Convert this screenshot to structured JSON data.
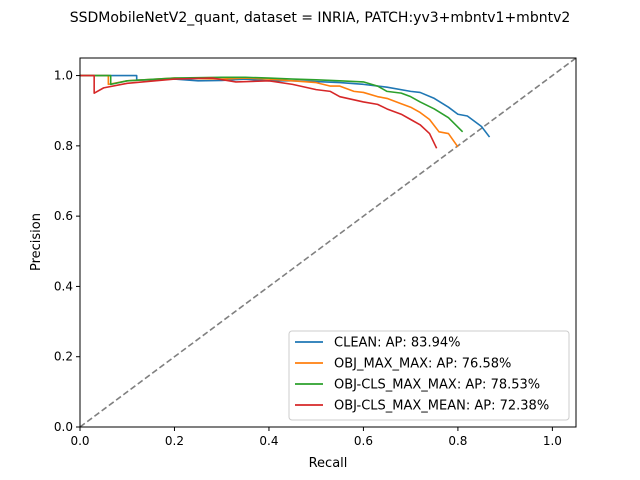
{
  "chart_data": {
    "type": "line",
    "title": "SSDMobileNetV2_quant, dataset = INRIA, PATCH:yv3+mbntv1+mbntv2",
    "xlabel": "Recall",
    "ylabel": "Precision",
    "xlim": [
      0,
      1.05
    ],
    "ylim": [
      0,
      1.05
    ],
    "xticks": [
      0.0,
      0.2,
      0.4,
      0.6,
      0.8,
      1.0
    ],
    "yticks": [
      0.0,
      0.2,
      0.4,
      0.6,
      0.8,
      1.0
    ],
    "xtick_labels": [
      "0.0",
      "0.2",
      "0.4",
      "0.6",
      "0.8",
      "1.0"
    ],
    "ytick_labels": [
      "0.0",
      "0.2",
      "0.4",
      "0.6",
      "0.8",
      "1.0"
    ],
    "grid": false,
    "legend_position": "lower-right",
    "reference_line": {
      "x": [
        0,
        1.05
      ],
      "y": [
        0,
        1.05
      ],
      "color": "#808080",
      "style": "dashed"
    },
    "series": [
      {
        "name": "CLEAN: AP: 83.94%",
        "color": "#1f77b4",
        "x": [
          0.0,
          0.12,
          0.12,
          0.2,
          0.25,
          0.3,
          0.35,
          0.4,
          0.45,
          0.5,
          0.55,
          0.6,
          0.65,
          0.7,
          0.72,
          0.75,
          0.78,
          0.8,
          0.82,
          0.85,
          0.867
        ],
        "y": [
          1.0,
          1.0,
          0.987,
          0.99,
          0.985,
          0.986,
          0.99,
          0.985,
          0.985,
          0.983,
          0.98,
          0.975,
          0.967,
          0.955,
          0.952,
          0.935,
          0.91,
          0.89,
          0.885,
          0.855,
          0.825
        ]
      },
      {
        "name": "OBJ_MAX_MAX: AP: 76.58%",
        "color": "#ff7f0e",
        "x": [
          0.0,
          0.06,
          0.06,
          0.1,
          0.2,
          0.3,
          0.35,
          0.4,
          0.45,
          0.5,
          0.53,
          0.55,
          0.58,
          0.6,
          0.63,
          0.65,
          0.68,
          0.7,
          0.72,
          0.74,
          0.76,
          0.78,
          0.8
        ],
        "y": [
          1.0,
          1.0,
          0.975,
          0.985,
          0.993,
          0.99,
          0.993,
          0.99,
          0.985,
          0.98,
          0.97,
          0.97,
          0.955,
          0.952,
          0.94,
          0.935,
          0.92,
          0.91,
          0.895,
          0.875,
          0.84,
          0.835,
          0.797
        ]
      },
      {
        "name": "OBJ-CLS_MAX_MAX: AP: 78.53%",
        "color": "#2ca02c",
        "x": [
          0.0,
          0.065,
          0.065,
          0.1,
          0.2,
          0.3,
          0.35,
          0.4,
          0.45,
          0.5,
          0.55,
          0.6,
          0.63,
          0.65,
          0.68,
          0.7,
          0.72,
          0.75,
          0.78,
          0.81
        ],
        "y": [
          1.0,
          1.0,
          0.975,
          0.985,
          0.993,
          0.995,
          0.995,
          0.993,
          0.99,
          0.988,
          0.985,
          0.982,
          0.97,
          0.955,
          0.95,
          0.94,
          0.925,
          0.905,
          0.88,
          0.84
        ]
      },
      {
        "name": "OBJ-CLS_MAX_MEAN: AP: 72.38%",
        "color": "#d62728",
        "x": [
          0.0,
          0.03,
          0.03,
          0.05,
          0.1,
          0.2,
          0.28,
          0.33,
          0.4,
          0.45,
          0.5,
          0.53,
          0.55,
          0.6,
          0.63,
          0.65,
          0.68,
          0.7,
          0.72,
          0.74,
          0.755
        ],
        "y": [
          1.0,
          1.0,
          0.95,
          0.965,
          0.978,
          0.99,
          0.993,
          0.982,
          0.985,
          0.975,
          0.96,
          0.955,
          0.94,
          0.925,
          0.918,
          0.905,
          0.89,
          0.875,
          0.86,
          0.835,
          0.793
        ]
      }
    ]
  }
}
